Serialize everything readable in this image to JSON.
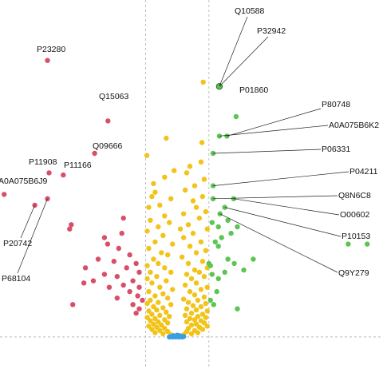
{
  "chart_data": {
    "type": "scatter",
    "title": "",
    "xlabel": "",
    "ylabel": "",
    "grid": false,
    "legend": false,
    "xlim": [
      -5.6,
      6.5
    ],
    "ylim": [
      -0.3,
      15.6
    ],
    "thresholds": {
      "x": [
        -1,
        1
      ],
      "y": 0
    },
    "colors": {
      "down": "#d84f68",
      "up": "#5cc553",
      "notsig": "#f2c318",
      "base": "#3a9ee0",
      "highlight_ring": "#2a7a2a",
      "leader": "#222222",
      "threshold": "#b8b8b8"
    },
    "labeled_points": [
      {
        "id": "Q10588",
        "x": 1.33,
        "y": 11.6
      },
      {
        "id": "P32942",
        "x": 1.33,
        "y": 11.6
      },
      {
        "id": "P01860",
        "x": 1.86,
        "y": 10.2
      },
      {
        "id": "P80748",
        "x": 1.57,
        "y": 9.3
      },
      {
        "id": "A0A075B6K2",
        "x": 1.33,
        "y": 9.3
      },
      {
        "id": "P06331",
        "x": 1.13,
        "y": 8.5
      },
      {
        "id": "P04211",
        "x": 1.13,
        "y": 7.0
      },
      {
        "id": "Q8N6C8",
        "x": 1.13,
        "y": 6.4
      },
      {
        "id": "O00602",
        "x": 1.78,
        "y": 6.4
      },
      {
        "id": "P10153",
        "x": 1.5,
        "y": 6.0
      },
      {
        "id": "Q9Y279",
        "x": 1.35,
        "y": 5.7
      },
      {
        "id": "P23280",
        "x": -4.1,
        "y": 12.8
      },
      {
        "id": "Q15063",
        "x": -2.19,
        "y": 10.0
      },
      {
        "id": "Q09666",
        "x": -2.61,
        "y": 8.5
      },
      {
        "id": "P11908",
        "x": -4.05,
        "y": 7.6
      },
      {
        "id": "P11166",
        "x": -3.6,
        "y": 7.5
      },
      {
        "id": "A0A075B6J9",
        "x": -5.47,
        "y": 6.6
      },
      {
        "id": "P20742",
        "x": -4.5,
        "y": 6.1
      },
      {
        "id": "P68104",
        "x": -4.1,
        "y": 6.4
      }
    ],
    "series": [
      {
        "name": "",
        "group": "down",
        "points": [
          [
            -4.1,
            12.8
          ],
          [
            -2.19,
            10.0
          ],
          [
            -2.61,
            8.5
          ],
          [
            -4.05,
            7.6
          ],
          [
            -3.6,
            7.5
          ],
          [
            -5.47,
            6.6
          ],
          [
            -4.5,
            6.1
          ],
          [
            -4.1,
            6.4
          ],
          [
            -3.4,
            5.0
          ],
          [
            -3.35,
            5.2
          ],
          [
            -1.7,
            5.5
          ],
          [
            -1.75,
            4.8
          ],
          [
            -2.3,
            4.6
          ],
          [
            -2.2,
            4.3
          ],
          [
            -1.85,
            4.1
          ],
          [
            -1.5,
            3.8
          ],
          [
            -2.5,
            3.6
          ],
          [
            -2.0,
            3.5
          ],
          [
            -1.3,
            3.4
          ],
          [
            -1.6,
            3.2
          ],
          [
            -2.9,
            3.2
          ],
          [
            -1.2,
            3.0
          ],
          [
            -2.3,
            2.9
          ],
          [
            -1.9,
            2.8
          ],
          [
            -1.4,
            2.6
          ],
          [
            -2.65,
            2.6
          ],
          [
            -1.7,
            2.4
          ],
          [
            -1.2,
            2.3
          ],
          [
            -2.95,
            2.5
          ],
          [
            -2.15,
            2.3
          ],
          [
            -1.5,
            2.1
          ],
          [
            -1.25,
            1.9
          ],
          [
            -1.9,
            1.8
          ],
          [
            -1.1,
            1.7
          ],
          [
            -1.4,
            1.5
          ],
          [
            -3.3,
            1.5
          ],
          [
            -1.2,
            1.3
          ],
          [
            -1.3,
            1.1
          ]
        ]
      },
      {
        "name": "",
        "group": "up",
        "points": [
          [
            1.33,
            11.6
          ],
          [
            1.86,
            10.2
          ],
          [
            1.57,
            9.3
          ],
          [
            1.33,
            9.3
          ],
          [
            1.13,
            8.5
          ],
          [
            1.13,
            7.0
          ],
          [
            1.13,
            6.4
          ],
          [
            1.78,
            6.4
          ],
          [
            1.5,
            6.0
          ],
          [
            1.35,
            5.7
          ],
          [
            1.6,
            5.4
          ],
          [
            1.1,
            5.3
          ],
          [
            1.3,
            5.1
          ],
          [
            1.9,
            5.1
          ],
          [
            1.7,
            4.8
          ],
          [
            1.4,
            4.6
          ],
          [
            1.2,
            4.4
          ],
          [
            5.4,
            4.3
          ],
          [
            6.0,
            4.3
          ],
          [
            1.3,
            4.2
          ],
          [
            2.4,
            3.6
          ],
          [
            1.6,
            3.6
          ],
          [
            1.0,
            3.4
          ],
          [
            1.8,
            3.4
          ],
          [
            1.05,
            3.3
          ],
          [
            2.1,
            3.1
          ],
          [
            1.5,
            3.0
          ],
          [
            1.1,
            2.9
          ],
          [
            1.3,
            2.7
          ],
          [
            1.25,
            2.1
          ],
          [
            1.05,
            1.7
          ],
          [
            1.15,
            1.5
          ],
          [
            1.9,
            1.3
          ]
        ]
      },
      {
        "name": "",
        "group": "notsig",
        "points": [
          [
            0.82,
            11.8
          ],
          [
            0.78,
            9.0
          ],
          [
            -0.96,
            8.4
          ],
          [
            -0.35,
            9.2
          ],
          [
            -0.1,
            7.7
          ],
          [
            0.4,
            7.9
          ],
          [
            0.75,
            8.1
          ],
          [
            0.3,
            7.6
          ],
          [
            0.85,
            7.3
          ],
          [
            -0.4,
            7.4
          ],
          [
            -0.75,
            7.1
          ],
          [
            0.55,
            7.0
          ],
          [
            -0.7,
            6.7
          ],
          [
            0.25,
            6.8
          ],
          [
            -0.8,
            6.5
          ],
          [
            0.8,
            6.5
          ],
          [
            -0.2,
            6.4
          ],
          [
            0.5,
            6.3
          ],
          [
            -0.9,
            6.0
          ],
          [
            0.6,
            6.0
          ],
          [
            -0.55,
            6.1
          ],
          [
            0.2,
            5.7
          ],
          [
            -0.4,
            5.6
          ],
          [
            0.9,
            5.8
          ],
          [
            -0.85,
            5.4
          ],
          [
            -0.25,
            5.3
          ],
          [
            0.35,
            5.2
          ],
          [
            0.7,
            5.5
          ],
          [
            -0.6,
            5.1
          ],
          [
            0.1,
            5.0
          ],
          [
            -0.95,
            4.9
          ],
          [
            0.95,
            5.0
          ],
          [
            0.5,
            4.8
          ],
          [
            -0.45,
            4.7
          ],
          [
            0.2,
            4.6
          ],
          [
            -0.7,
            4.4
          ],
          [
            0.75,
            4.4
          ],
          [
            -0.15,
            4.3
          ],
          [
            0.4,
            4.2
          ],
          [
            -0.9,
            4.1
          ],
          [
            0.9,
            4.0
          ],
          [
            -0.5,
            3.9
          ],
          [
            0.6,
            3.9
          ],
          [
            -0.3,
            3.8
          ],
          [
            0.15,
            3.7
          ],
          [
            -0.75,
            3.6
          ],
          [
            0.8,
            3.5
          ],
          [
            -0.6,
            3.4
          ],
          [
            0.35,
            3.4
          ],
          [
            -0.95,
            3.3
          ],
          [
            0.95,
            3.2
          ],
          [
            -0.4,
            3.2
          ],
          [
            0.55,
            3.1
          ],
          [
            -0.85,
            3.0
          ],
          [
            0.7,
            3.0
          ],
          [
            -0.2,
            3.0
          ],
          [
            0.3,
            2.9
          ],
          [
            -0.65,
            2.8
          ],
          [
            0.85,
            2.8
          ],
          [
            -0.95,
            2.7
          ],
          [
            0.45,
            2.7
          ],
          [
            -0.35,
            2.6
          ],
          [
            0.6,
            2.5
          ],
          [
            -0.8,
            2.5
          ],
          [
            0.25,
            2.4
          ],
          [
            -0.55,
            2.3
          ],
          [
            0.95,
            2.3
          ],
          [
            -0.15,
            2.2
          ],
          [
            0.75,
            2.2
          ],
          [
            -0.9,
            2.1
          ],
          [
            0.4,
            2.1
          ],
          [
            -0.45,
            2.0
          ],
          [
            0.55,
            1.95
          ],
          [
            -0.7,
            1.9
          ],
          [
            0.85,
            1.85
          ],
          [
            -0.3,
            1.8
          ],
          [
            0.2,
            1.75
          ],
          [
            -0.85,
            1.7
          ],
          [
            0.65,
            1.7
          ],
          [
            -0.6,
            1.6
          ],
          [
            0.35,
            1.6
          ],
          [
            -0.95,
            1.55
          ],
          [
            0.9,
            1.55
          ],
          [
            -0.2,
            1.5
          ],
          [
            0.5,
            1.45
          ],
          [
            -0.75,
            1.4
          ],
          [
            0.75,
            1.4
          ],
          [
            -0.45,
            1.35
          ],
          [
            0.3,
            1.3
          ],
          [
            -0.65,
            1.25
          ],
          [
            0.6,
            1.25
          ],
          [
            -0.9,
            1.2
          ],
          [
            0.95,
            1.2
          ],
          [
            -0.35,
            1.15
          ],
          [
            0.45,
            1.1
          ],
          [
            -0.8,
            1.05
          ],
          [
            0.8,
            1.05
          ],
          [
            -0.55,
            1.0
          ],
          [
            0.25,
            1.0
          ],
          [
            -0.25,
            0.95
          ],
          [
            0.65,
            0.95
          ],
          [
            -0.95,
            0.9
          ],
          [
            0.9,
            0.9
          ],
          [
            -0.7,
            0.85
          ],
          [
            0.4,
            0.85
          ],
          [
            -0.4,
            0.8
          ],
          [
            0.55,
            0.8
          ],
          [
            -0.85,
            0.75
          ],
          [
            0.75,
            0.75
          ],
          [
            -0.6,
            0.7
          ],
          [
            0.3,
            0.7
          ],
          [
            -0.3,
            0.65
          ],
          [
            0.85,
            0.65
          ],
          [
            -0.75,
            0.6
          ],
          [
            0.6,
            0.6
          ],
          [
            -0.5,
            0.55
          ],
          [
            0.45,
            0.55
          ],
          [
            -0.9,
            0.5
          ],
          [
            0.95,
            0.5
          ],
          [
            -0.65,
            0.45
          ],
          [
            0.7,
            0.45
          ],
          [
            -0.4,
            0.4
          ],
          [
            0.35,
            0.4
          ],
          [
            -0.8,
            0.35
          ],
          [
            0.8,
            0.35
          ],
          [
            -0.55,
            0.3
          ],
          [
            0.55,
            0.3
          ],
          [
            -0.3,
            0.25
          ],
          [
            0.3,
            0.25
          ],
          [
            -0.7,
            0.2
          ],
          [
            0.65,
            0.2
          ],
          [
            -0.45,
            0.15
          ],
          [
            0.45,
            0.15
          ],
          [
            -0.2,
            0.1
          ],
          [
            0.2,
            0.1
          ]
        ]
      },
      {
        "name": "",
        "group": "base",
        "points": [
          [
            -0.25,
            0.0
          ],
          [
            -0.2,
            0.02
          ],
          [
            -0.15,
            0.0
          ],
          [
            -0.1,
            0.03
          ],
          [
            -0.05,
            0.0
          ],
          [
            0.0,
            0.02
          ],
          [
            0.05,
            0.0
          ],
          [
            0.1,
            0.03
          ],
          [
            0.15,
            0.0
          ],
          [
            0.2,
            0.02
          ],
          [
            -0.12,
            0.06
          ],
          [
            0.08,
            0.06
          ],
          [
            0.0,
            0.08
          ]
        ]
      }
    ]
  }
}
